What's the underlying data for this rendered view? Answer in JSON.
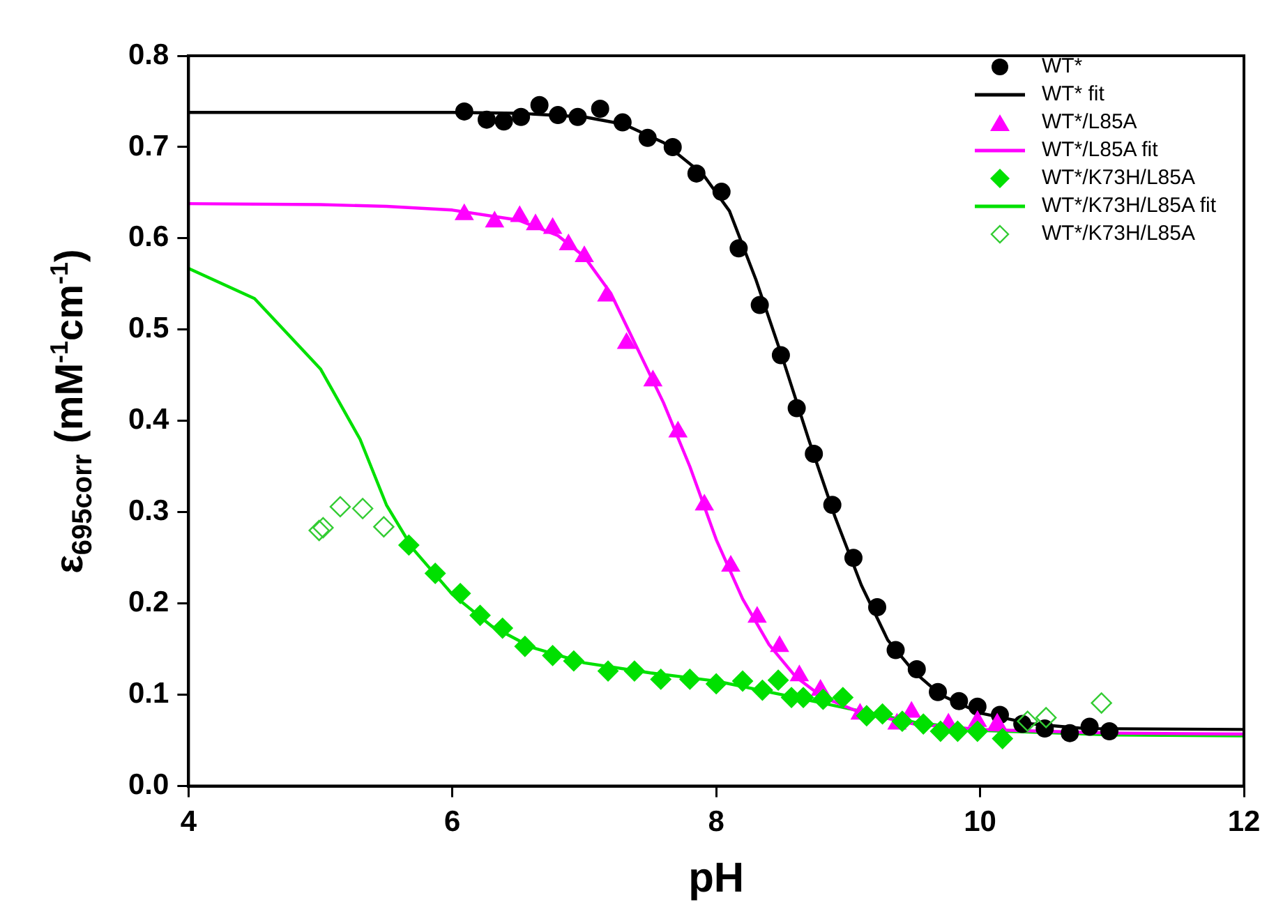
{
  "chart_data": {
    "type": "scatter",
    "xlabel": "pH",
    "ylabel": "ε$_{695corr}$ (mM$^{-1}$cm$^{-1}$)",
    "xlim": [
      4,
      12
    ],
    "xticks": [
      4,
      6,
      8,
      10,
      12
    ],
    "ylim": [
      0,
      0.8
    ],
    "yticks": [
      {
        "value": 0,
        "label": "0.0"
      },
      {
        "value": 0.1,
        "label": "0.1"
      },
      {
        "value": 0.2,
        "label": "0.2"
      },
      {
        "value": 0.3,
        "label": "0.3"
      },
      {
        "value": 0.4,
        "label": "0.4"
      },
      {
        "value": 0.5,
        "label": "0.5"
      },
      {
        "value": 0.6,
        "label": "0.6"
      },
      {
        "value": 0.7,
        "label": "0.7"
      },
      {
        "value": 0.8,
        "label": "0.8"
      }
    ],
    "grid": false,
    "legend": "top right",
    "series": [
      {
        "name": "WT*",
        "type": "scatter",
        "marker": "circle",
        "color": "#000000",
        "x": [
          6.09,
          6.26,
          6.39,
          6.52,
          6.66,
          6.8,
          6.95,
          7.12,
          7.29,
          7.48,
          7.67,
          7.85,
          8.04,
          8.17,
          8.33,
          8.49,
          8.61,
          8.74,
          8.88,
          9.04,
          9.22,
          9.36,
          9.52,
          9.68,
          9.84,
          9.98,
          10.15,
          10.32,
          10.49,
          10.68,
          10.83,
          10.98
        ],
        "values": [
          0.739,
          0.73,
          0.728,
          0.733,
          0.746,
          0.735,
          0.733,
          0.742,
          0.727,
          0.71,
          0.7,
          0.671,
          0.651,
          0.589,
          0.527,
          0.472,
          0.414,
          0.364,
          0.308,
          0.25,
          0.196,
          0.149,
          0.128,
          0.103,
          0.093,
          0.087,
          0.078,
          0.068,
          0.063,
          0.058,
          0.065,
          0.06
        ]
      },
      {
        "name": "WT* fit",
        "type": "line",
        "marker": "none",
        "color": "#000000",
        "x": [
          4,
          6,
          6.5,
          7,
          7.3,
          7.6,
          7.9,
          8.1,
          8.3,
          8.5,
          8.7,
          8.9,
          9.1,
          9.3,
          9.5,
          9.7,
          10,
          10.4,
          10.8,
          12
        ],
        "values": [
          0.738,
          0.738,
          0.737,
          0.733,
          0.725,
          0.705,
          0.67,
          0.63,
          0.555,
          0.47,
          0.38,
          0.295,
          0.22,
          0.16,
          0.125,
          0.1,
          0.08,
          0.068,
          0.063,
          0.062
        ]
      },
      {
        "name": "WT*/L85A",
        "type": "scatter",
        "marker": "triangle",
        "color": "#ff00ff",
        "x": [
          6.09,
          6.32,
          6.51,
          6.63,
          6.76,
          6.88,
          7.0,
          7.17,
          7.32,
          7.52,
          7.71,
          7.91,
          8.11,
          8.31,
          8.48,
          8.63,
          8.79,
          9.09,
          9.37,
          9.48,
          9.76,
          9.98,
          10.13
        ],
        "values": [
          0.626,
          0.618,
          0.624,
          0.615,
          0.611,
          0.593,
          0.58,
          0.537,
          0.485,
          0.444,
          0.388,
          0.308,
          0.241,
          0.185,
          0.153,
          0.121,
          0.105,
          0.079,
          0.068,
          0.081,
          0.068,
          0.071,
          0.068
        ]
      },
      {
        "name": "WT*/L85A fit",
        "type": "line",
        "marker": "none",
        "color": "#ff00ff",
        "x": [
          4,
          5,
          5.5,
          6,
          6.5,
          6.8,
          7.0,
          7.2,
          7.4,
          7.6,
          7.8,
          8.0,
          8.2,
          8.4,
          8.6,
          8.8,
          9.1,
          9.5,
          10,
          11,
          12
        ],
        "values": [
          0.638,
          0.637,
          0.635,
          0.631,
          0.62,
          0.603,
          0.58,
          0.54,
          0.48,
          0.42,
          0.35,
          0.27,
          0.205,
          0.155,
          0.12,
          0.098,
          0.08,
          0.068,
          0.062,
          0.058,
          0.057
        ]
      },
      {
        "name": "WT*/K73H/L85A",
        "type": "scatter",
        "marker": "diamond",
        "color": "#00e000",
        "x": [
          5.67,
          5.87,
          6.06,
          6.21,
          6.38,
          6.55,
          6.76,
          6.92,
          7.18,
          7.38,
          7.58,
          7.8,
          8.0,
          8.2,
          8.35,
          8.47,
          8.57,
          8.66,
          8.81,
          8.96,
          9.14,
          9.26,
          9.41,
          9.57,
          9.7,
          9.83,
          9.98,
          10.17
        ],
        "values": [
          0.264,
          0.233,
          0.211,
          0.187,
          0.173,
          0.153,
          0.143,
          0.137,
          0.126,
          0.126,
          0.117,
          0.117,
          0.112,
          0.115,
          0.105,
          0.116,
          0.097,
          0.097,
          0.095,
          0.097,
          0.077,
          0.079,
          0.071,
          0.068,
          0.06,
          0.06,
          0.06,
          0.052
        ]
      },
      {
        "name": "WT*/K73H/L85A fit",
        "type": "line",
        "marker": "none",
        "color": "#00e000",
        "x": [
          4,
          4.5,
          5,
          5.3,
          5.5,
          5.7,
          6,
          6.3,
          6.6,
          7,
          7.5,
          8,
          8.5,
          9,
          9.5,
          10,
          11,
          12
        ],
        "values": [
          0.567,
          0.534,
          0.457,
          0.38,
          0.308,
          0.26,
          0.21,
          0.175,
          0.152,
          0.135,
          0.124,
          0.115,
          0.1,
          0.085,
          0.07,
          0.061,
          0.056,
          0.055
        ]
      },
      {
        "name": "WT*/K73H/L85A",
        "type": "scatter",
        "marker": "diamond-open",
        "color": "#33cc33",
        "x": [
          4.99,
          5.02,
          5.15,
          5.32,
          5.48,
          10.36,
          10.5,
          10.92
        ],
        "values": [
          0.28,
          0.283,
          0.306,
          0.304,
          0.284,
          0.071,
          0.075,
          0.091
        ]
      }
    ]
  }
}
